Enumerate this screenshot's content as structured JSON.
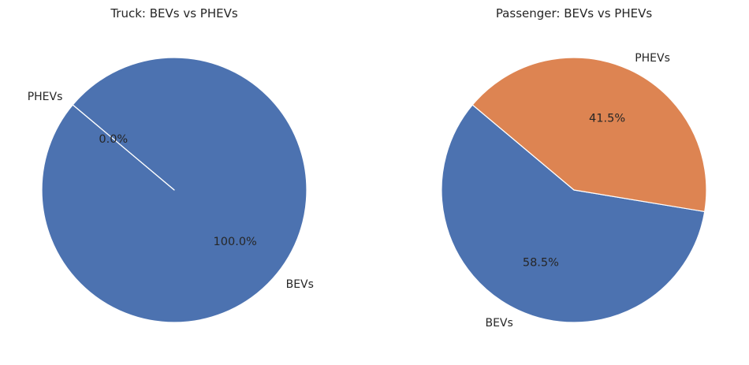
{
  "chart_data": [
    {
      "type": "pie",
      "title": "Truck: BEVs vs PHEVs",
      "slices": [
        {
          "label": "BEVs",
          "value": 100.0,
          "pct_label": "100.0%",
          "color": "#4c72b0"
        },
        {
          "label": "PHEVs",
          "value": 0.0,
          "pct_label": "0.0%",
          "color": "#dd8452"
        }
      ]
    },
    {
      "type": "pie",
      "title": "Passenger: BEVs vs PHEVs",
      "slices": [
        {
          "label": "BEVs",
          "value": 58.5,
          "pct_label": "58.5%",
          "color": "#4c72b0"
        },
        {
          "label": "PHEVs",
          "value": 41.5,
          "pct_label": "41.5%",
          "color": "#dd8452"
        }
      ]
    }
  ]
}
